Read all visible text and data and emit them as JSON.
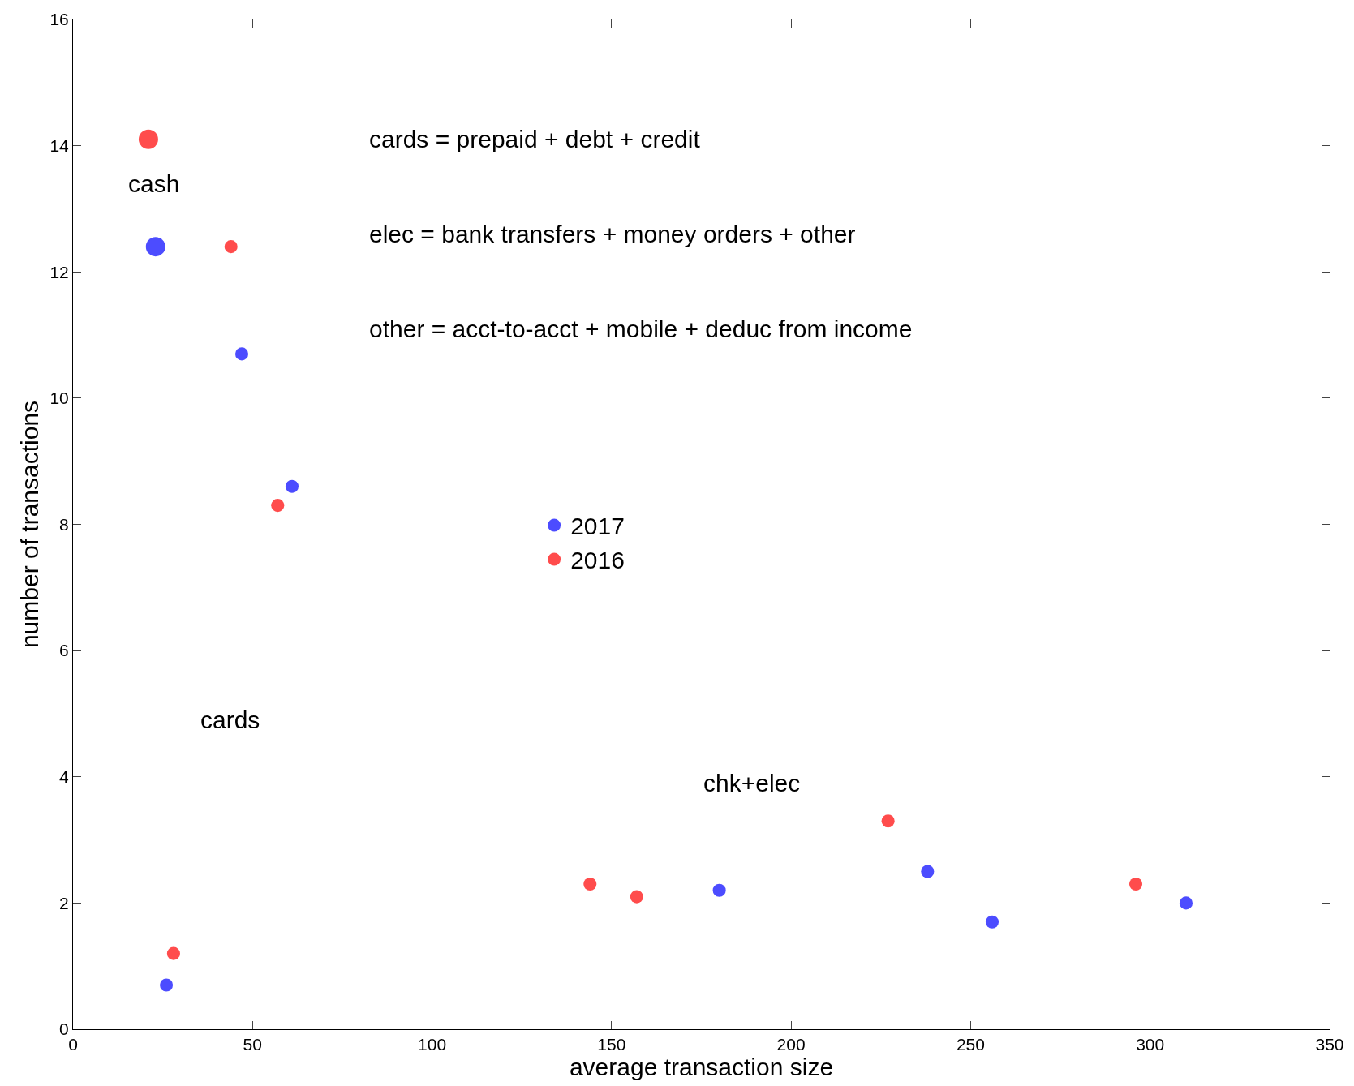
{
  "chart_data": {
    "type": "bubble",
    "xlabel": "average transaction size",
    "ylabel": "number of transactions",
    "series": [
      {
        "name": "2017",
        "color": "#0000ff",
        "x": [
          23,
          47,
          61,
          26,
          180,
          238,
          256,
          310
        ],
        "values": [
          12.4,
          10.7,
          8.6,
          0.7,
          2.2,
          2.5,
          1.7,
          2.0
        ],
        "sizes": [
          1,
          0.45,
          0.45,
          0.45,
          0.45,
          0.45,
          0.45,
          0.45
        ]
      },
      {
        "name": "2016",
        "color": "#ff0000",
        "x": [
          21,
          44,
          57,
          28,
          144,
          157,
          227,
          296
        ],
        "values": [
          14.1,
          12.4,
          8.3,
          1.2,
          2.3,
          2.1,
          3.3,
          2.3
        ],
        "sizes": [
          1,
          0.45,
          0.45,
          0.45,
          0.45,
          0.45,
          0.45,
          0.45
        ]
      }
    ],
    "xlim": [
      0,
      350
    ],
    "xticks": [
      0,
      50,
      100,
      150,
      200,
      250,
      300,
      350
    ],
    "ylim": [
      0,
      16
    ],
    "yticks": [
      0,
      2,
      4,
      6,
      8,
      10,
      12,
      14,
      16
    ],
    "legend": "center",
    "marker": "circle",
    "annotations": [
      "cards = prepaid + debt + credit",
      "elec = bank transfers + money orders + other",
      "other = acct-to-acct + mobile + deduc from income",
      "cash",
      "cards",
      "chk+elec"
    ]
  }
}
